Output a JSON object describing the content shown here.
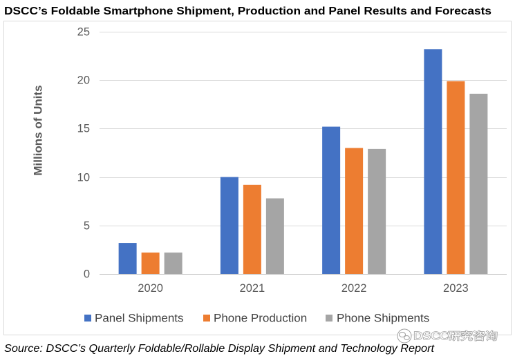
{
  "chart_data": {
    "type": "bar",
    "title": "DSCC’s Foldable Smartphone Shipment, Production and Panel Results and Forecasts",
    "ylabel": "Millions of Units",
    "categories": [
      "2020",
      "2021",
      "2022",
      "2023"
    ],
    "series": [
      {
        "name": "Panel Shipments",
        "color": "#4472C4",
        "values": [
          3.2,
          10.0,
          15.2,
          23.2
        ]
      },
      {
        "name": "Phone Production",
        "color": "#ED7D31",
        "values": [
          2.2,
          9.2,
          13.0,
          19.9
        ]
      },
      {
        "name": "Phone Shipments",
        "color": "#A5A5A5",
        "values": [
          2.2,
          7.8,
          12.9,
          18.6
        ]
      }
    ],
    "ylim": [
      0,
      25
    ],
    "yticks": [
      0,
      5,
      10,
      15,
      20,
      25
    ],
    "grid": true,
    "legend": "bottom"
  },
  "footer": {
    "source": "Source: DSCC’s Quarterly Foldable/Rollable Display Shipment and Technology Report"
  },
  "watermark": {
    "text": "DSCC研究咨询",
    "icon": "wechat-icon"
  }
}
